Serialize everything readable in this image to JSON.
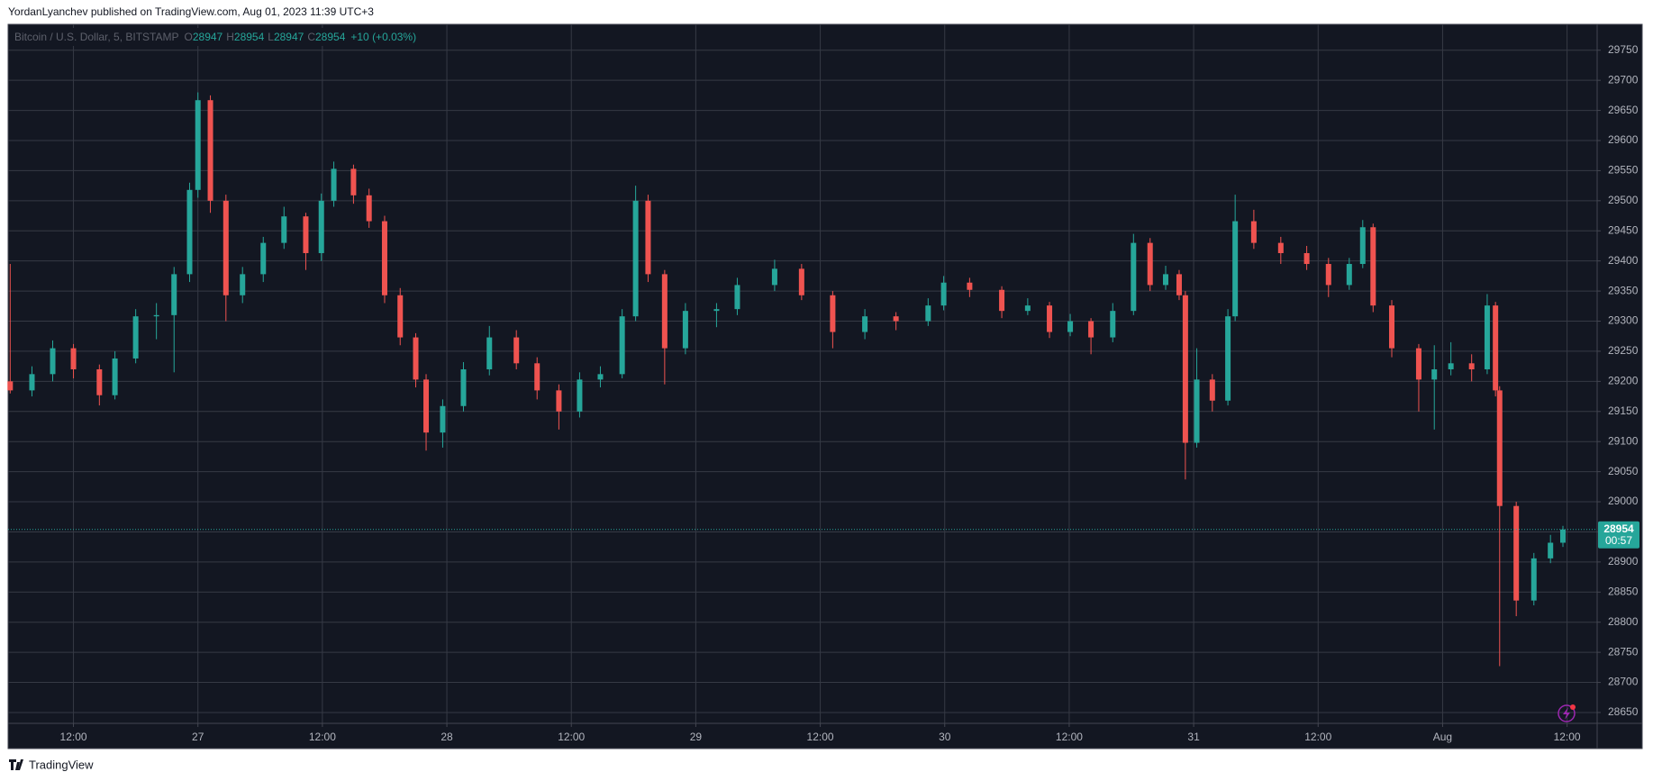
{
  "header": {
    "publisher": "YordanLyanchev published on TradingView.com, Aug 01, 2023 11:39 UTC+3"
  },
  "chart_data": {
    "type": "candlestick",
    "title": "Bitcoin / U.S. Dollar, 5, BITSTAMP",
    "ohlc_legend": [
      {
        "label": "O",
        "value": 28947
      },
      {
        "label": "H",
        "value": 28954
      },
      {
        "label": "L",
        "value": 28947
      },
      {
        "label": "C",
        "value": 28954
      }
    ],
    "change": "+10 (+0.03%)",
    "up_color": "#26a69a",
    "down_color": "#ef5350",
    "grid": true,
    "x": [
      -18.1,
      -16,
      -14,
      -12,
      -9.5,
      -8,
      -6,
      -4,
      -2.3,
      -0.8,
      0,
      1.2,
      2.7,
      4.3,
      6.3,
      8.3,
      10.4,
      11.9,
      13.1,
      15,
      16.5,
      18,
      19.5,
      21,
      22,
      23.6,
      25.6,
      28.1,
      30.7,
      32.7,
      34.8,
      36.8,
      38.8,
      40.9,
      42.2,
      43.4,
      45,
      47,
      50,
      52,
      55.6,
      58.2,
      61.2,
      64.3,
      67.3,
      70.4,
      71.9,
      74.4,
      77.5,
      80,
      82.1,
      84.1,
      86.1,
      88.2,
      90.2,
      91.8,
      93.3,
      94.6,
      95.2,
      96.3,
      97.8,
      99.3,
      100,
      101.8,
      104.4,
      106.9,
      109,
      111,
      112.3,
      113.3,
      115.1,
      117.7,
      119.2,
      120.8,
      122.8,
      124.3,
      125.1,
      125.5,
      127.1,
      128.8,
      130.4,
      131.6
    ],
    "open": [
      29200,
      29185,
      29212,
      29255,
      29220,
      29177,
      29238,
      29308,
      29310,
      29378,
      29518,
      29667,
      29500,
      29343,
      29378,
      29430,
      29474,
      29413,
      29500,
      29553,
      29509,
      29466,
      29343,
      29273,
      29203,
      29115,
      29159,
      29220,
      29273,
      29230,
      29185,
      29150,
      29203,
      29212,
      29308,
      29500,
      29378,
      29255,
      29317,
      29320,
      29360,
      29387,
      29343,
      29282,
      29308,
      29300,
      29326,
      29364,
      29352,
      29317,
      29326,
      29282,
      29300,
      29273,
      29317,
      29430,
      29360,
      29378,
      29343,
      29098,
      29203,
      29168,
      29308,
      29466,
      29430,
      29413,
      29395,
      29360,
      29395,
      29456,
      29326,
      29255,
      29203,
      29220,
      29230,
      29220,
      29326,
      29185,
      28993,
      28836,
      28906,
      28932
    ],
    "high": [
      29395,
      29225,
      29268,
      29262,
      29228,
      29250,
      29320,
      29330,
      29390,
      29530,
      29680,
      29675,
      29510,
      29390,
      29440,
      29490,
      29480,
      29512,
      29565,
      29560,
      29520,
      29475,
      29355,
      29280,
      29212,
      29170,
      29232,
      29292,
      29285,
      29240,
      29195,
      29215,
      29225,
      29320,
      29525,
      29510,
      29385,
      29330,
      29330,
      29372,
      29402,
      29395,
      29350,
      29320,
      29315,
      29338,
      29375,
      29372,
      29358,
      29338,
      29332,
      29312,
      29305,
      29330,
      29445,
      29438,
      29392,
      29385,
      29350,
      29255,
      29212,
      29320,
      29510,
      29485,
      29440,
      29425,
      29405,
      29405,
      29468,
      29462,
      29335,
      29262,
      29260,
      29265,
      29245,
      29345,
      29332,
      29192,
      29000,
      28915,
      28945,
      28960
    ],
    "low": [
      29180,
      29175,
      29200,
      29205,
      29160,
      29170,
      29230,
      29270,
      29215,
      29365,
      29505,
      29480,
      29300,
      29330,
      29365,
      29420,
      29385,
      29400,
      29490,
      29495,
      29455,
      29330,
      29260,
      29190,
      29085,
      29090,
      29150,
      29210,
      29220,
      29170,
      29120,
      29140,
      29190,
      29205,
      29300,
      29365,
      29195,
      29245,
      29290,
      29310,
      29350,
      29335,
      29255,
      29270,
      29285,
      29292,
      29318,
      29340,
      29305,
      29310,
      29272,
      29275,
      29245,
      29265,
      29310,
      29350,
      29352,
      29335,
      29037,
      29090,
      29150,
      29160,
      29300,
      29420,
      29395,
      29385,
      29340,
      29352,
      29388,
      29315,
      29240,
      29150,
      29120,
      29210,
      29200,
      29212,
      29175,
      28727,
      28810,
      28828,
      28898,
      28925
    ],
    "close": [
      29185,
      29212,
      29255,
      29220,
      29177,
      29238,
      29308,
      29310,
      29378,
      29518,
      29667,
      29500,
      29343,
      29378,
      29430,
      29474,
      29413,
      29500,
      29553,
      29509,
      29466,
      29343,
      29273,
      29203,
      29115,
      29159,
      29220,
      29273,
      29230,
      29185,
      29150,
      29203,
      29212,
      29308,
      29500,
      29378,
      29255,
      29317,
      29320,
      29360,
      29387,
      29343,
      29282,
      29308,
      29300,
      29326,
      29364,
      29352,
      29317,
      29326,
      29282,
      29300,
      29273,
      29317,
      29430,
      29360,
      29378,
      29343,
      29098,
      29203,
      29168,
      29308,
      29466,
      29430,
      29413,
      29395,
      29360,
      29395,
      29456,
      29326,
      29255,
      29203,
      29220,
      29230,
      29220,
      29326,
      29185,
      28993,
      28836,
      28906,
      28932,
      28954
    ],
    "xlim": [
      -18.3,
      134.9
    ],
    "xticks": [
      {
        "value": -12,
        "label": "12:00"
      },
      {
        "value": 0,
        "label": "27"
      },
      {
        "value": 12,
        "label": "12:00"
      },
      {
        "value": 24,
        "label": "28"
      },
      {
        "value": 36,
        "label": "12:00"
      },
      {
        "value": 48,
        "label": "29"
      },
      {
        "value": 60,
        "label": "12:00"
      },
      {
        "value": 72,
        "label": "30"
      },
      {
        "value": 84,
        "label": "12:00"
      },
      {
        "value": 96,
        "label": "31"
      },
      {
        "value": 108,
        "label": "12:00"
      },
      {
        "value": 120,
        "label": "Aug"
      },
      {
        "value": 132,
        "label": "12:00"
      }
    ],
    "ylim": [
      28632,
      29793
    ],
    "yticks": [
      28650,
      28700,
      28750,
      28800,
      28850,
      28900,
      28950,
      29000,
      29050,
      29100,
      29150,
      29200,
      29250,
      29300,
      29350,
      29400,
      29450,
      29500,
      29550,
      29600,
      29650,
      29700,
      29750
    ],
    "last_price": 28954,
    "countdown": "00:57"
  },
  "footer": {
    "brand": "TradingView"
  }
}
